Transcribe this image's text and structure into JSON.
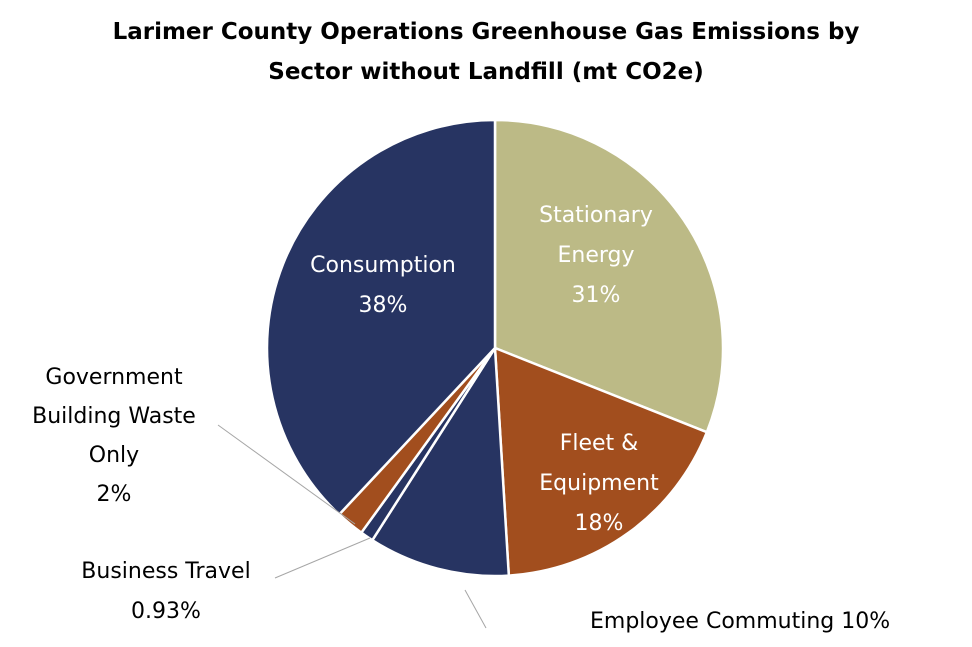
{
  "chart_data": {
    "type": "pie",
    "title": "Larimer County Operations Greenhouse Gas Emissions by Sector without Landfill (mt CO2e)",
    "title_lines": [
      "Larimer County Operations Greenhouse Gas Emissions by",
      "Sector without Landfill (mt CO2e)"
    ],
    "slices": [
      {
        "name": "Stationary Energy",
        "lines": [
          "Stationary",
          "Energy"
        ],
        "value": 31,
        "percent_label": "31%",
        "color": "#bcba86"
      },
      {
        "name": "Fleet & Equipment",
        "lines": [
          "Fleet &",
          "Equipment"
        ],
        "value": 18,
        "percent_label": "18%",
        "color": "#a24e1e"
      },
      {
        "name": "Employee Commuting",
        "lines": [
          "Employee Commuting 10%"
        ],
        "value": 10,
        "percent_label": "10%",
        "color": "#273462"
      },
      {
        "name": "Business Travel",
        "lines": [
          "Business Travel"
        ],
        "value": 0.93,
        "percent_label": "0.93%",
        "color": "#273462"
      },
      {
        "name": "Government Building Waste Only",
        "lines": [
          "Government",
          "Building Waste",
          "Only"
        ],
        "value": 2,
        "percent_label": "2%",
        "color": "#a24e1e"
      },
      {
        "name": "Consumption",
        "lines": [
          "Consumption"
        ],
        "value": 38,
        "percent_label": "38%",
        "color": "#273462"
      }
    ],
    "legend": "none",
    "label_style": "data labels on and beside slices with leader lines"
  }
}
